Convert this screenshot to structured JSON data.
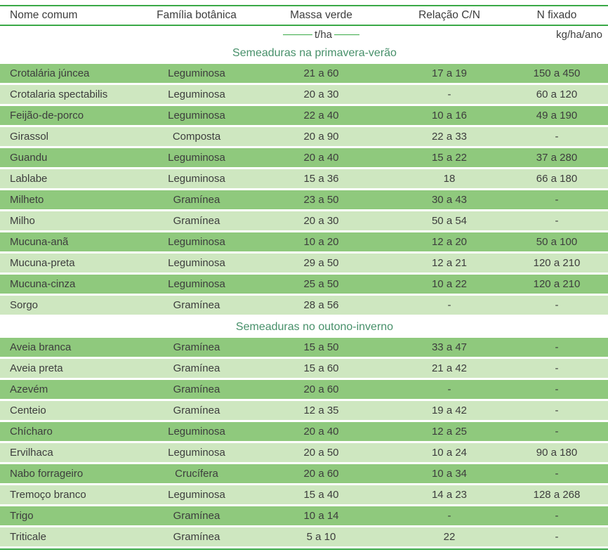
{
  "table": {
    "columns": [
      "Nome comum",
      "Família botânica",
      "Massa verde",
      "Relação C/N",
      "N fixado"
    ],
    "units": {
      "massa_verde": "t/ha",
      "n_fixado": "kg/ha/ano"
    },
    "sections": [
      {
        "title": "Semeaduras na primavera-verão",
        "rows": [
          [
            "Crotalária júncea",
            "Leguminosa",
            "21 a 60",
            "17 a 19",
            "150 a 450"
          ],
          [
            "Crotalaria spectabilis",
            "Leguminosa",
            "20 a 30",
            "-",
            "60 a 120"
          ],
          [
            "Feijão-de-porco",
            "Leguminosa",
            "22 a 40",
            "10 a 16",
            "49 a 190"
          ],
          [
            "Girassol",
            "Composta",
            "20 a 90",
            "22 a 33",
            "-"
          ],
          [
            "Guandu",
            "Leguminosa",
            "20 a 40",
            "15 a 22",
            "37 a 280"
          ],
          [
            "Lablabe",
            "Leguminosa",
            "15 a 36",
            "18",
            "66 a 180"
          ],
          [
            "Milheto",
            "Gramínea",
            "23 a 50",
            "30 a 43",
            "-"
          ],
          [
            "Milho",
            "Gramínea",
            "20 a 30",
            "50 a 54",
            "-"
          ],
          [
            "Mucuna-anã",
            "Leguminosa",
            "10 a 20",
            "12 a 20",
            "50 a 100"
          ],
          [
            "Mucuna-preta",
            "Leguminosa",
            "29 a 50",
            "12 a 21",
            "120 a 210"
          ],
          [
            "Mucuna-cinza",
            "Leguminosa",
            "25 a 50",
            "10 a 22",
            "120 a 210"
          ],
          [
            "Sorgo",
            "Gramínea",
            "28 a 56",
            "-",
            "-"
          ]
        ]
      },
      {
        "title": "Semeaduras no outono-inverno",
        "rows": [
          [
            "Aveia branca",
            "Gramínea",
            "15 a 50",
            "33 a 47",
            "-"
          ],
          [
            "Aveia preta",
            "Gramínea",
            "15 a 60",
            "21 a 42",
            "-"
          ],
          [
            "Azevém",
            "Gramínea",
            "20 a 60",
            "-",
            "-"
          ],
          [
            "Centeio",
            "Gramínea",
            "12 a 35",
            "19 a 42",
            "-"
          ],
          [
            "Chícharo",
            "Leguminosa",
            "20 a 40",
            "12 a 25",
            "-"
          ],
          [
            "Ervilhaca",
            "Leguminosa",
            "20 a 50",
            "10 a 24",
            "90 a 180"
          ],
          [
            "Nabo forrageiro",
            "Crucífera",
            "20 a 60",
            "10 a 34",
            "-"
          ],
          [
            "Tremoço branco",
            "Leguminosa",
            "15 a 40",
            "14 a 23",
            "128 a 268"
          ],
          [
            "Trigo",
            "Gramínea",
            "10 a 14",
            "-",
            "-"
          ],
          [
            "Triticale",
            "Gramínea",
            "5 a 10",
            "22",
            "-"
          ]
        ]
      }
    ]
  },
  "colors": {
    "line_green": "#3aa947",
    "row_dark": "#8fc97d",
    "row_light": "#cee7c0",
    "section_title_green": "#47906a",
    "text": "#3d3d3d"
  }
}
